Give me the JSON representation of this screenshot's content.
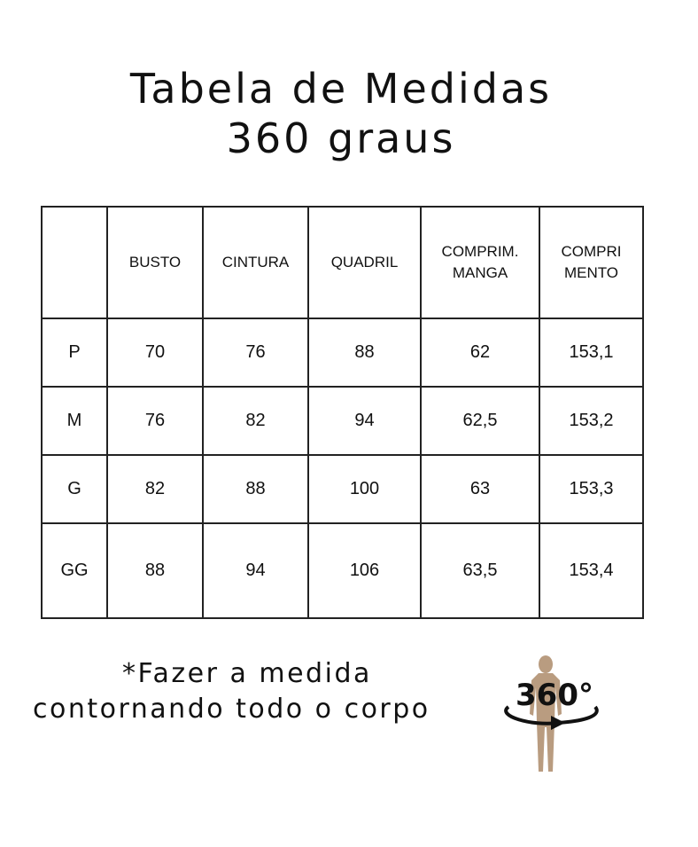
{
  "title_line1": "Tabela de Medidas",
  "title_line2": "360 graus",
  "table": {
    "headers": [
      "",
      "BUSTO",
      "CINTURA",
      "QUADRIL",
      "COMPRIM.\nMANGA",
      "COMPRI\nMENTO"
    ],
    "rows": [
      [
        "P",
        "70",
        "76",
        "88",
        "62",
        "153,1"
      ],
      [
        "M",
        "76",
        "82",
        "94",
        "62,5",
        "153,2"
      ],
      [
        "G",
        "82",
        "88",
        "100",
        "63",
        "153,3"
      ],
      [
        "GG",
        "88",
        "94",
        "106",
        "63,5",
        "153,4"
      ]
    ]
  },
  "note_line1": "*Fazer a medida",
  "note_line2": "contornando todo o corpo",
  "icon": {
    "name": "body-360-icon",
    "label": "360°",
    "figure_color": "#b99c80"
  }
}
